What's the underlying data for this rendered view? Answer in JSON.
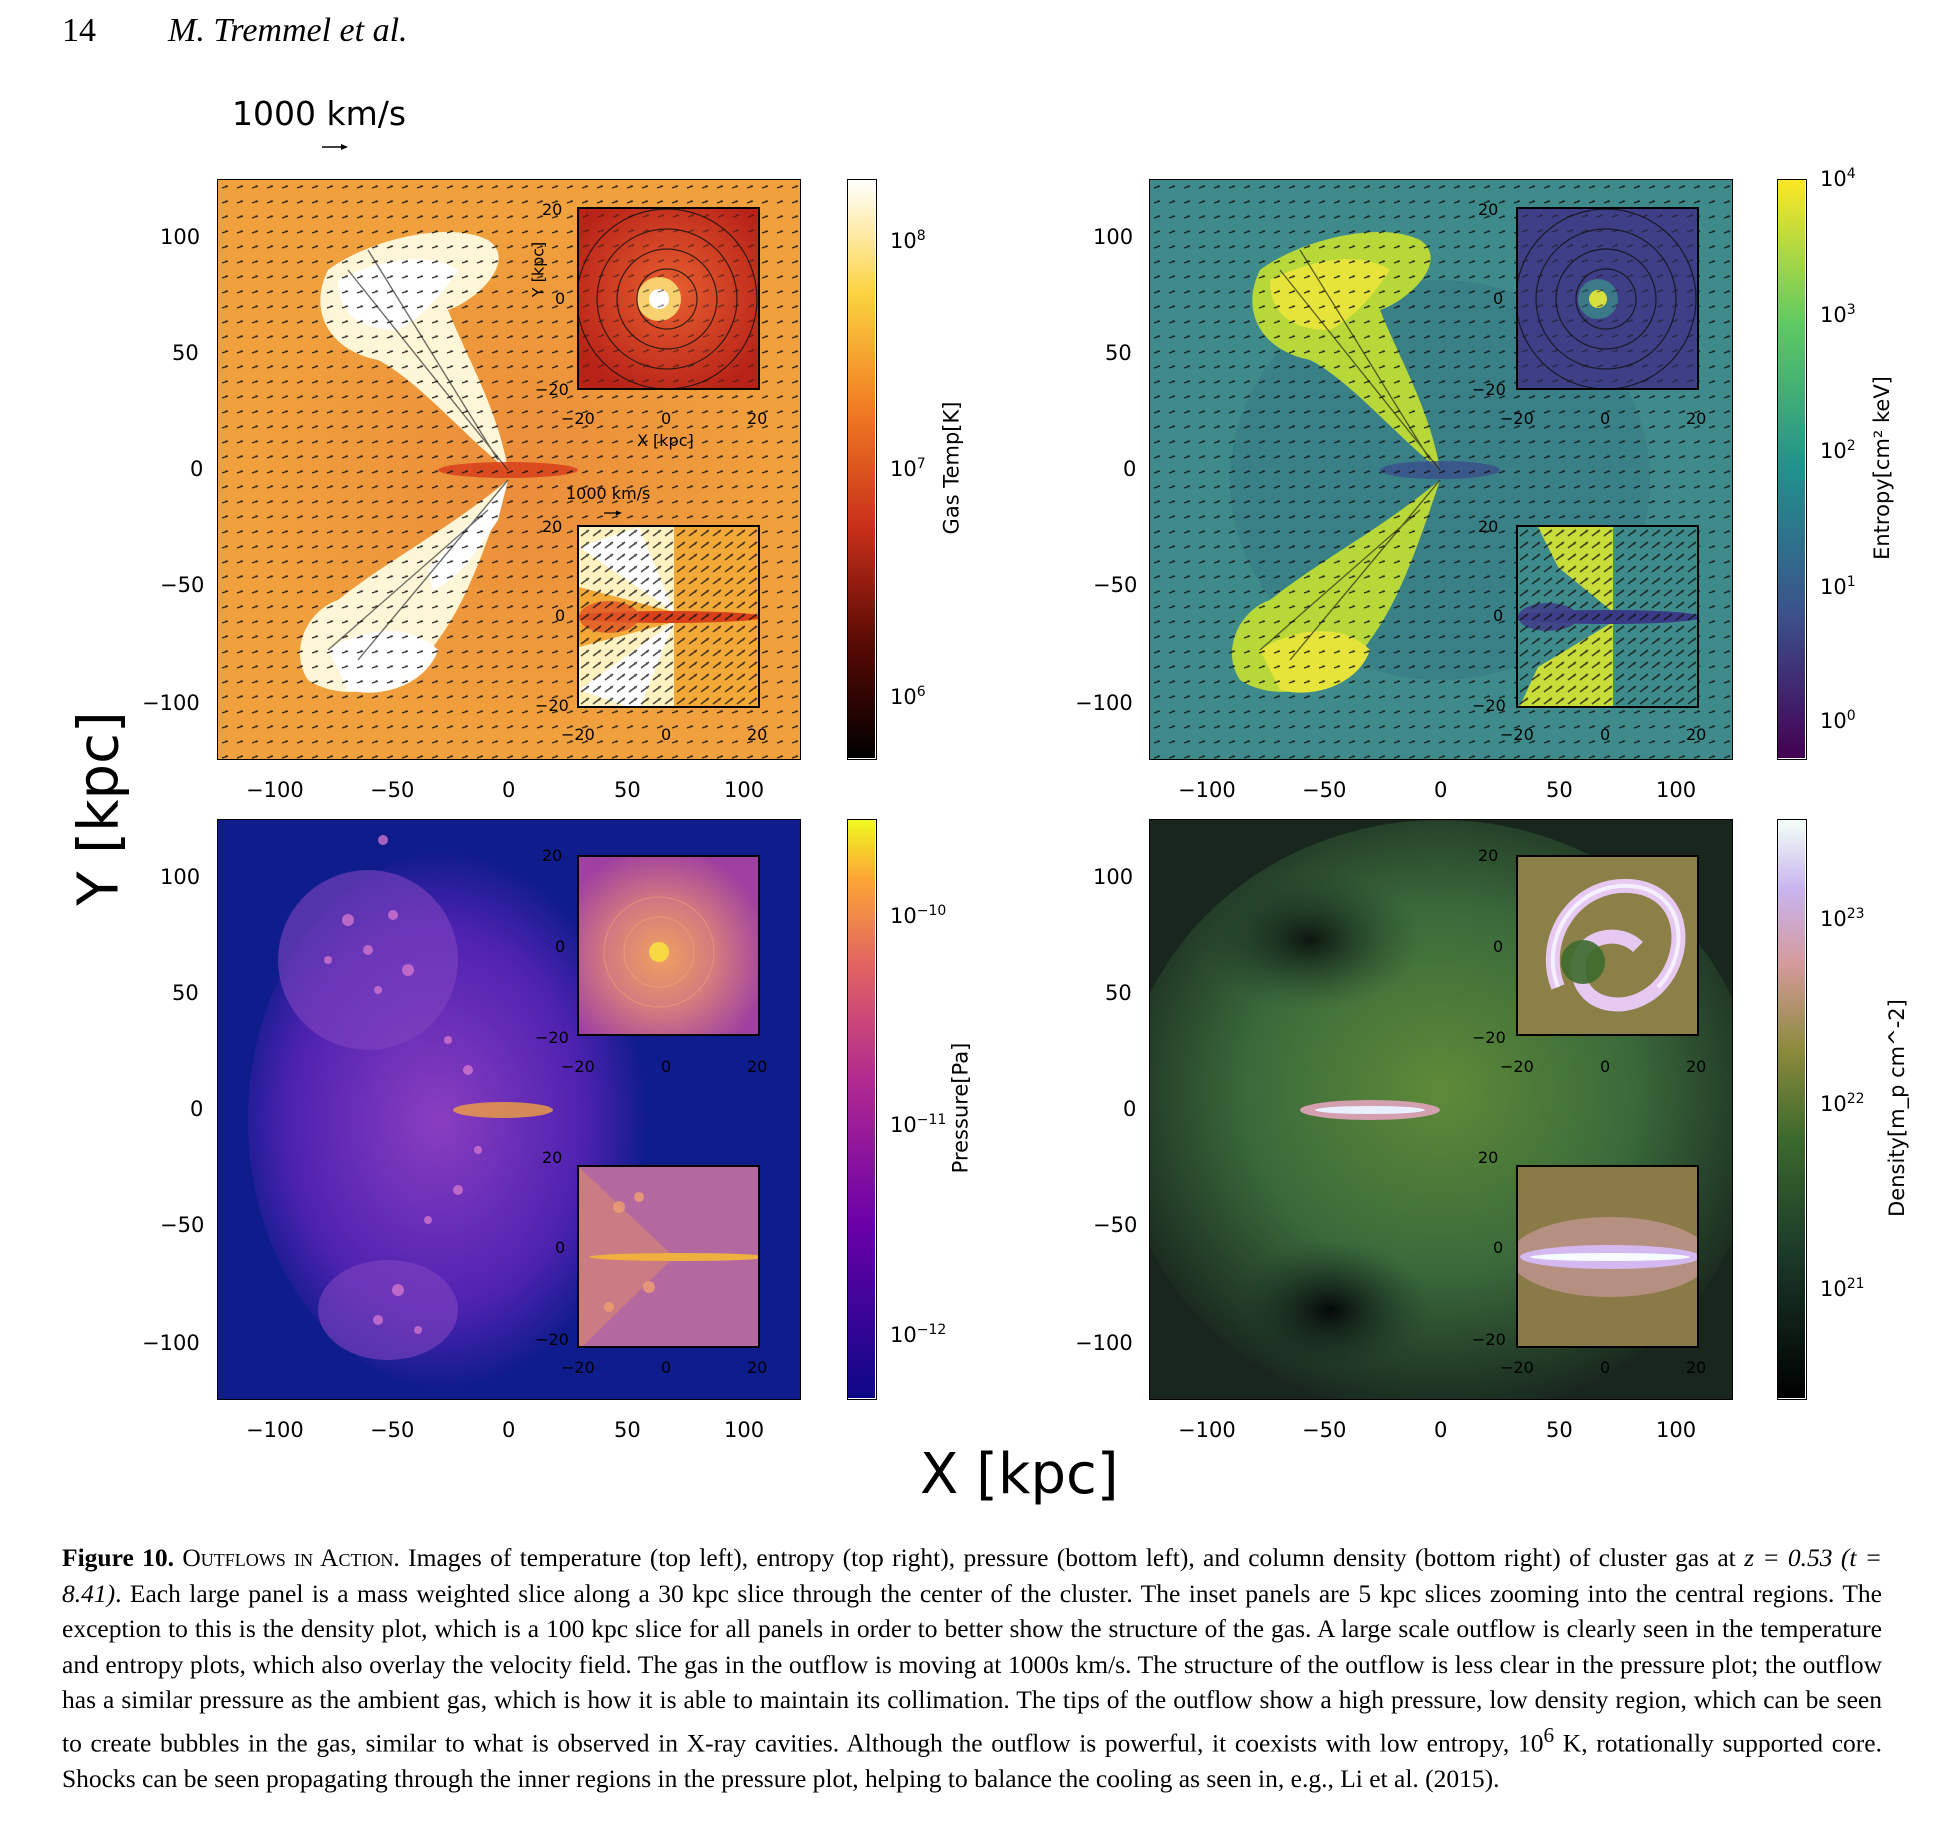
{
  "header": {
    "page_number": "14",
    "authors": "M. Tremmel et al."
  },
  "velocity_key": {
    "main": "1000 km/s",
    "inset": "1000 km/s"
  },
  "axes": {
    "big_ylabel": "Y [kpc]",
    "big_xlabel": "X [kpc]",
    "inset_ylabel": "Y [kpc]",
    "inset_xlabel": "X [kpc]",
    "x_ticks": [
      "−100",
      "−50",
      "0",
      "50",
      "100"
    ],
    "y_ticks": [
      "100",
      "50",
      "0",
      "−50",
      "−100"
    ],
    "inset_x_ticks": [
      "−20",
      "0",
      "20"
    ],
    "inset_y_ticks": [
      "20",
      "0",
      "−20"
    ]
  },
  "panels": {
    "temperature": {
      "colorbar_label": "Gas Temp[K]",
      "colorbar_ticks": [
        "10",
        "10",
        "10"
      ],
      "colorbar_exps": [
        "8",
        "7",
        "6"
      ]
    },
    "entropy": {
      "colorbar_label": "Entropy[cm² keV]",
      "colorbar_ticks": [
        "10",
        "10",
        "10",
        "10",
        "10"
      ],
      "colorbar_exps": [
        "4",
        "3",
        "2",
        "1",
        "0"
      ]
    },
    "pressure": {
      "colorbar_label": "Pressure[Pa]",
      "colorbar_ticks": [
        "10",
        "10",
        "10"
      ],
      "colorbar_exps": [
        "−10",
        "−11",
        "−12"
      ]
    },
    "density": {
      "colorbar_label": "Density[m_p cm^-2]",
      "colorbar_ticks": [
        "10",
        "10",
        "10"
      ],
      "colorbar_exps": [
        "23",
        "22",
        "21"
      ]
    }
  },
  "caption": {
    "label": "Figure 10.",
    "title": "Outflows in Action.",
    "text_a": " Images of temperature (top left), entropy (top right), pressure (bottom left), and column density (bottom right) of cluster gas at ",
    "z_expr": "z = 0.53 (t = 8.41)",
    "text_b": ". Each large panel is a mass weighted slice along a 30 kpc slice through the center of the cluster. The inset panels are 5 kpc slices zooming into the central regions. The exception to this is the density plot, which is a 100 kpc slice for all panels in order to better show the structure of the gas. A large scale outflow is clearly seen in the temperature and entropy plots, which also overlay the velocity field. The gas in the outflow is moving at 1000s km/s. The structure of the outflow is less clear in the pressure plot; the outflow has a similar pressure as the ambient gas, which is how it is able to maintain its collimation. The tips of the outflow show a high pressure, low density region, which can be seen to create bubbles in the gas, similar to what is observed in X-ray cavities. Although the outflow is powerful, it coexists with low entropy, 10",
    "sup": "6",
    "text_c": " K, rotationally supported core. Shocks can be seen propagating through the inner regions in the pressure plot, helping to balance the cooling as seen in, e.g., Li et al. (2015)."
  },
  "colors": {
    "temp_bg": "#f0a03c",
    "entropy_bg": "#3f8a8a",
    "pressure_bg": "#0f1c8c",
    "density_bg": "#243a2a"
  }
}
